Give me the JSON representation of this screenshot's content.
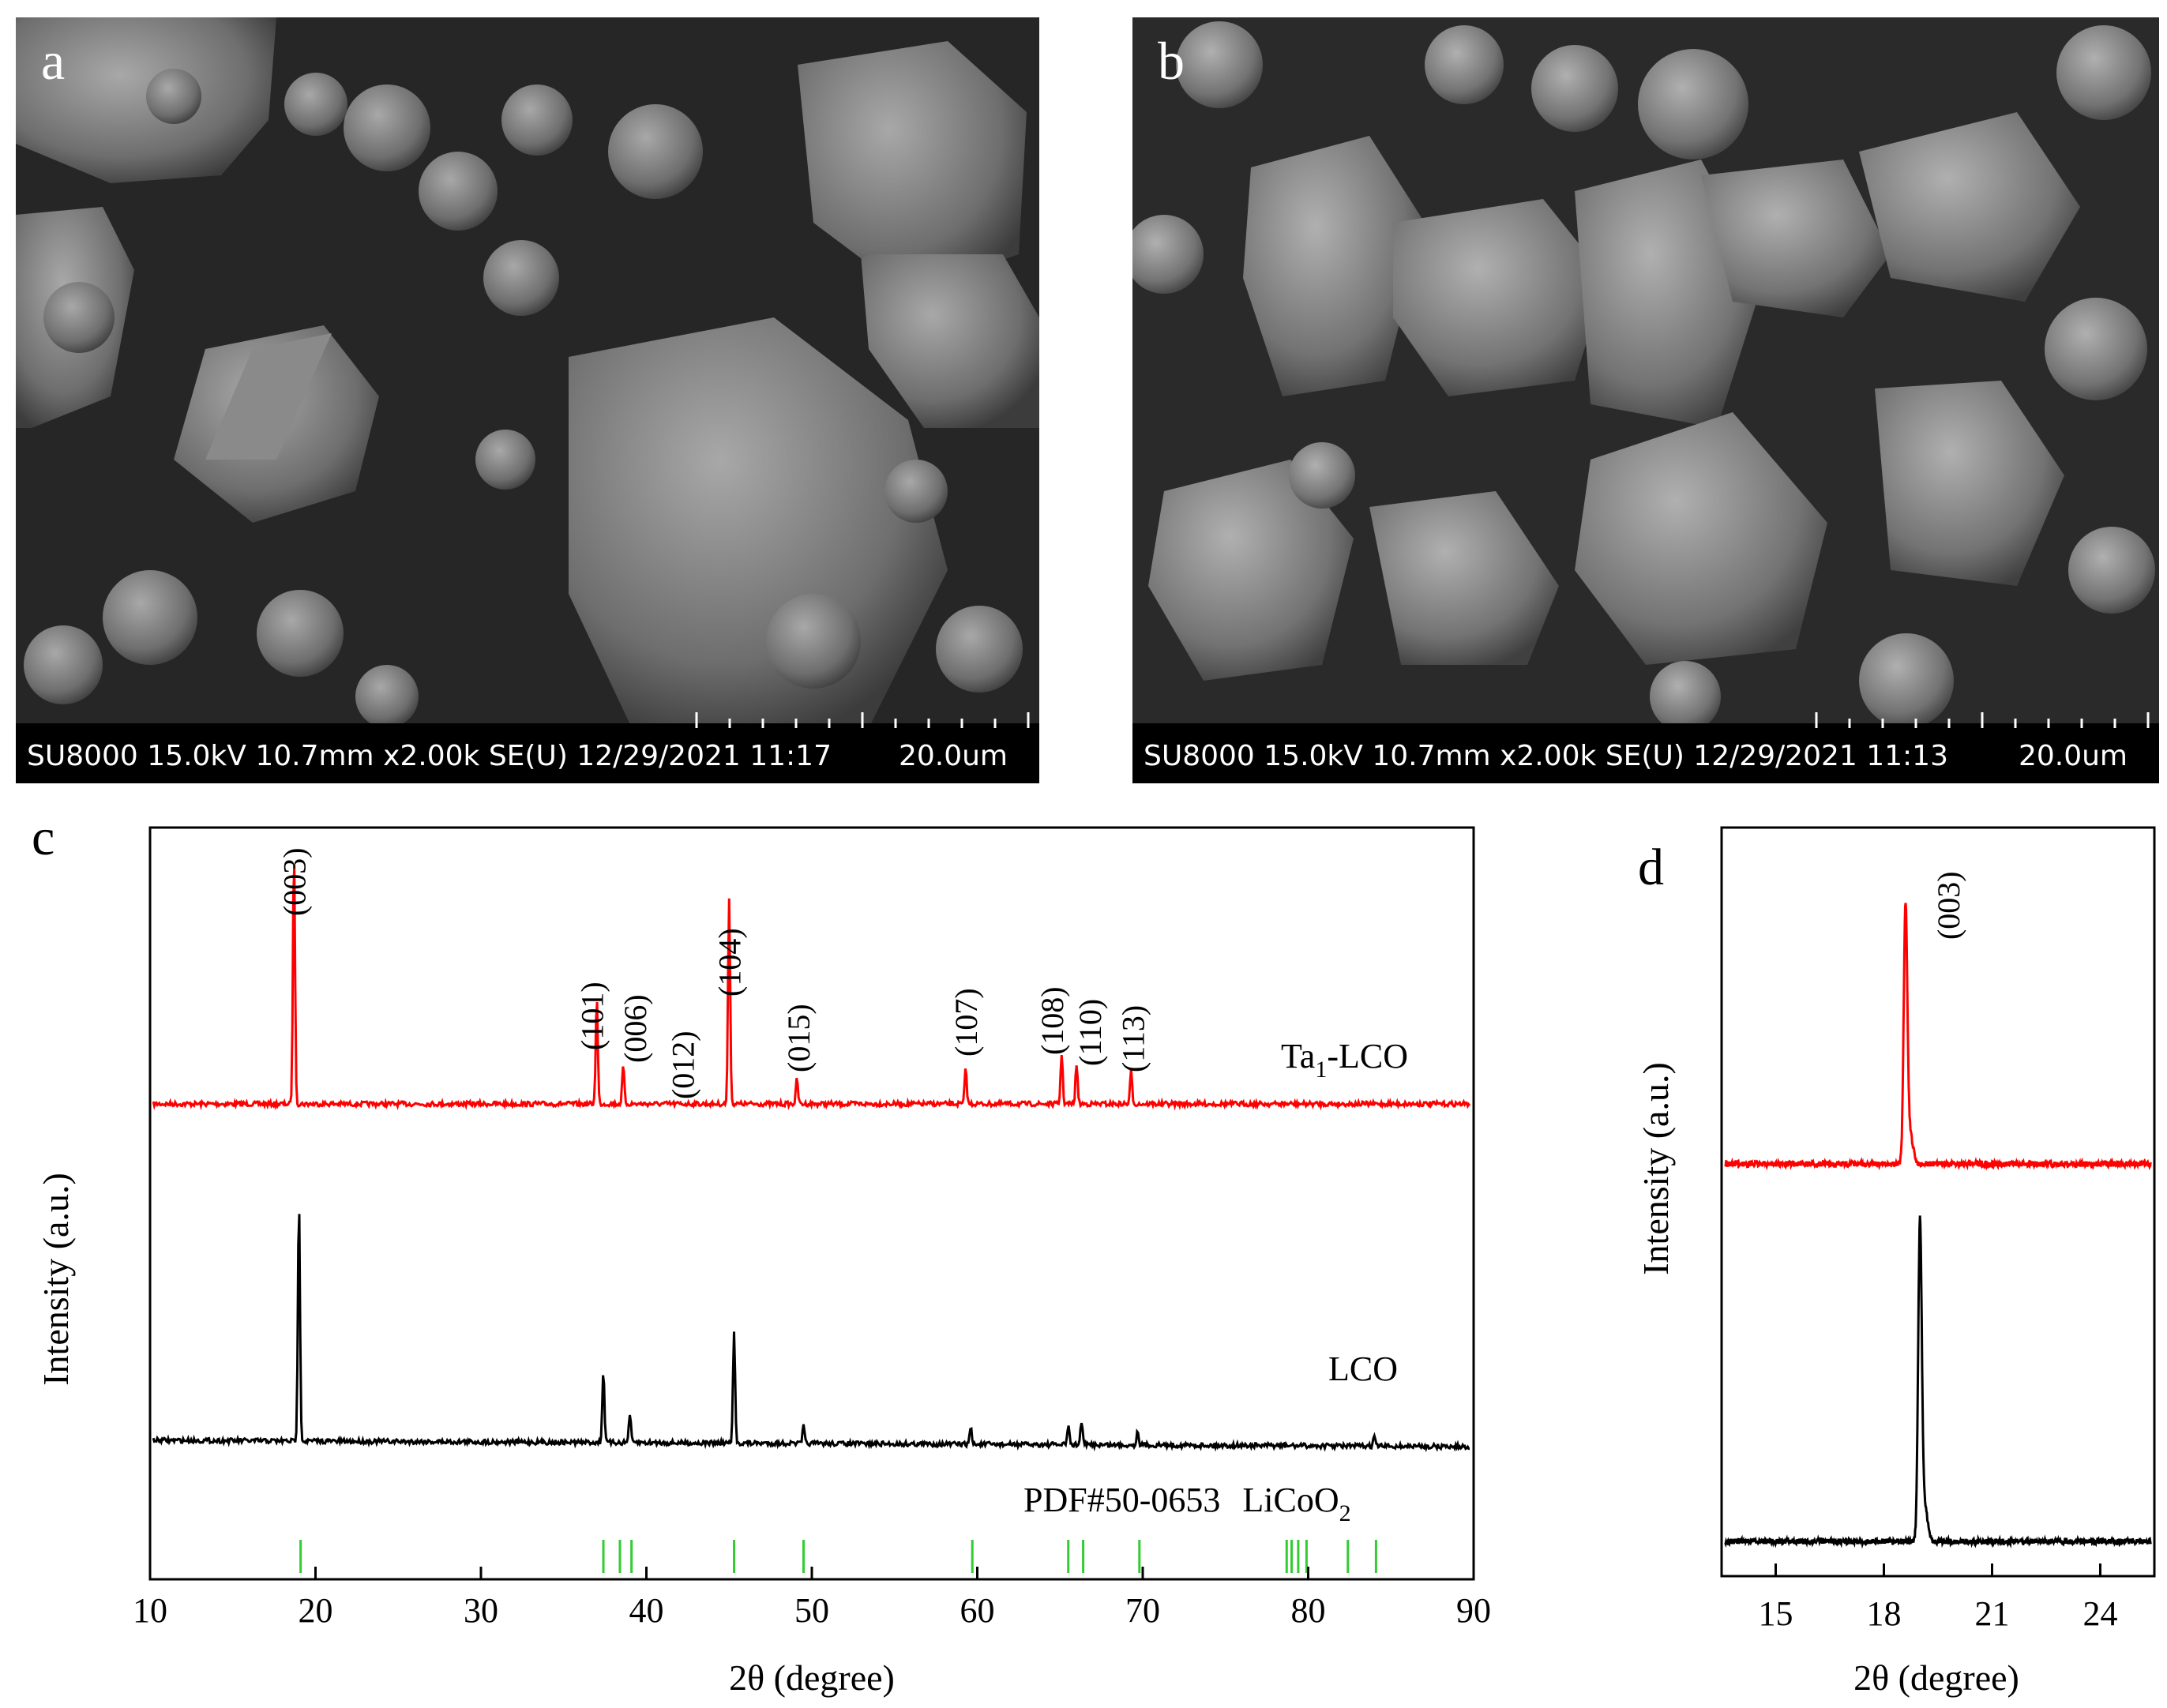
{
  "panels": {
    "a": {
      "letter": "a",
      "info": "SU8000 15.0kV 10.7mm x2.00k SE(U) 12/29/2021 11:17",
      "scale": "20.0um"
    },
    "b": {
      "letter": "b",
      "info": "SU8000 15.0kV 10.7mm x2.00k SE(U) 12/29/2021 11:13",
      "scale": "20.0um"
    },
    "c": {
      "letter": "c"
    },
    "d": {
      "letter": "d"
    }
  },
  "chart_data": [
    {
      "panel": "c",
      "type": "line",
      "xlabel": "2θ (degree)",
      "ylabel": "Intensity (a.u.)",
      "xlim": [
        10,
        90
      ],
      "xticks": [
        10,
        20,
        30,
        40,
        50,
        60,
        70,
        80,
        90
      ],
      "series": [
        {
          "name": "Ta1-LCO",
          "color": "#ff0000",
          "peaks": [
            {
              "x": 18.7,
              "h": 1.0
            },
            {
              "x": 37.0,
              "h": 0.42
            },
            {
              "x": 38.6,
              "h": 0.15
            },
            {
              "x": 45.0,
              "h": 0.82
            },
            {
              "x": 49.1,
              "h": 0.1
            },
            {
              "x": 59.3,
              "h": 0.14
            },
            {
              "x": 65.1,
              "h": 0.2
            },
            {
              "x": 66.0,
              "h": 0.16
            },
            {
              "x": 69.3,
              "h": 0.13
            }
          ]
        },
        {
          "name": "LCO",
          "color": "#000000",
          "peaks": [
            {
              "x": 19.0,
              "h": 1.0
            },
            {
              "x": 37.4,
              "h": 0.3
            },
            {
              "x": 39.0,
              "h": 0.12
            },
            {
              "x": 45.3,
              "h": 0.46
            },
            {
              "x": 49.5,
              "h": 0.07
            },
            {
              "x": 59.6,
              "h": 0.07
            },
            {
              "x": 65.5,
              "h": 0.08
            },
            {
              "x": 66.3,
              "h": 0.1
            },
            {
              "x": 69.7,
              "h": 0.06
            },
            {
              "x": 84.0,
              "h": 0.04
            }
          ]
        }
      ],
      "reference": {
        "name": "PDF#50-0653",
        "compound": "LiCoO",
        "subscript": "2",
        "color": "#33cc33",
        "positions": [
          19.1,
          37.4,
          38.4,
          39.1,
          45.3,
          49.5,
          59.7,
          65.5,
          66.4,
          69.8,
          78.7,
          79.0,
          79.4,
          79.9,
          82.4,
          84.1
        ]
      },
      "series_labels": {
        "ta_prefix": "Ta",
        "ta_subscript": "1",
        "ta_suffix": "-LCO",
        "lco": "LCO"
      },
      "annotations": [
        {
          "label": "(003)",
          "x": 18.7
        },
        {
          "label": "(101)",
          "x": 36.7
        },
        {
          "label": "(006)",
          "x": 39.3
        },
        {
          "label": "(012)",
          "x": 42.2
        },
        {
          "label": "(104)",
          "x": 45.0
        },
        {
          "label": "(015)",
          "x": 49.2
        },
        {
          "label": "(107)",
          "x": 59.3
        },
        {
          "label": "(108)",
          "x": 64.5
        },
        {
          "label": "(110)",
          "x": 66.8
        },
        {
          "label": "(113)",
          "x": 69.4
        }
      ]
    },
    {
      "panel": "d",
      "type": "line",
      "xlabel": "2θ (degree)",
      "ylabel": "Intensity (a.u.)",
      "xlim": [
        13.5,
        25.5
      ],
      "xticks": [
        15,
        18,
        21,
        24
      ],
      "series": [
        {
          "name": "Ta1-LCO",
          "color": "#ff0000",
          "peak": 18.6
        },
        {
          "name": "LCO",
          "color": "#000000",
          "peak": 19.0
        }
      ],
      "annotations": [
        {
          "label": "(003)",
          "x": 18.6
        }
      ]
    }
  ]
}
